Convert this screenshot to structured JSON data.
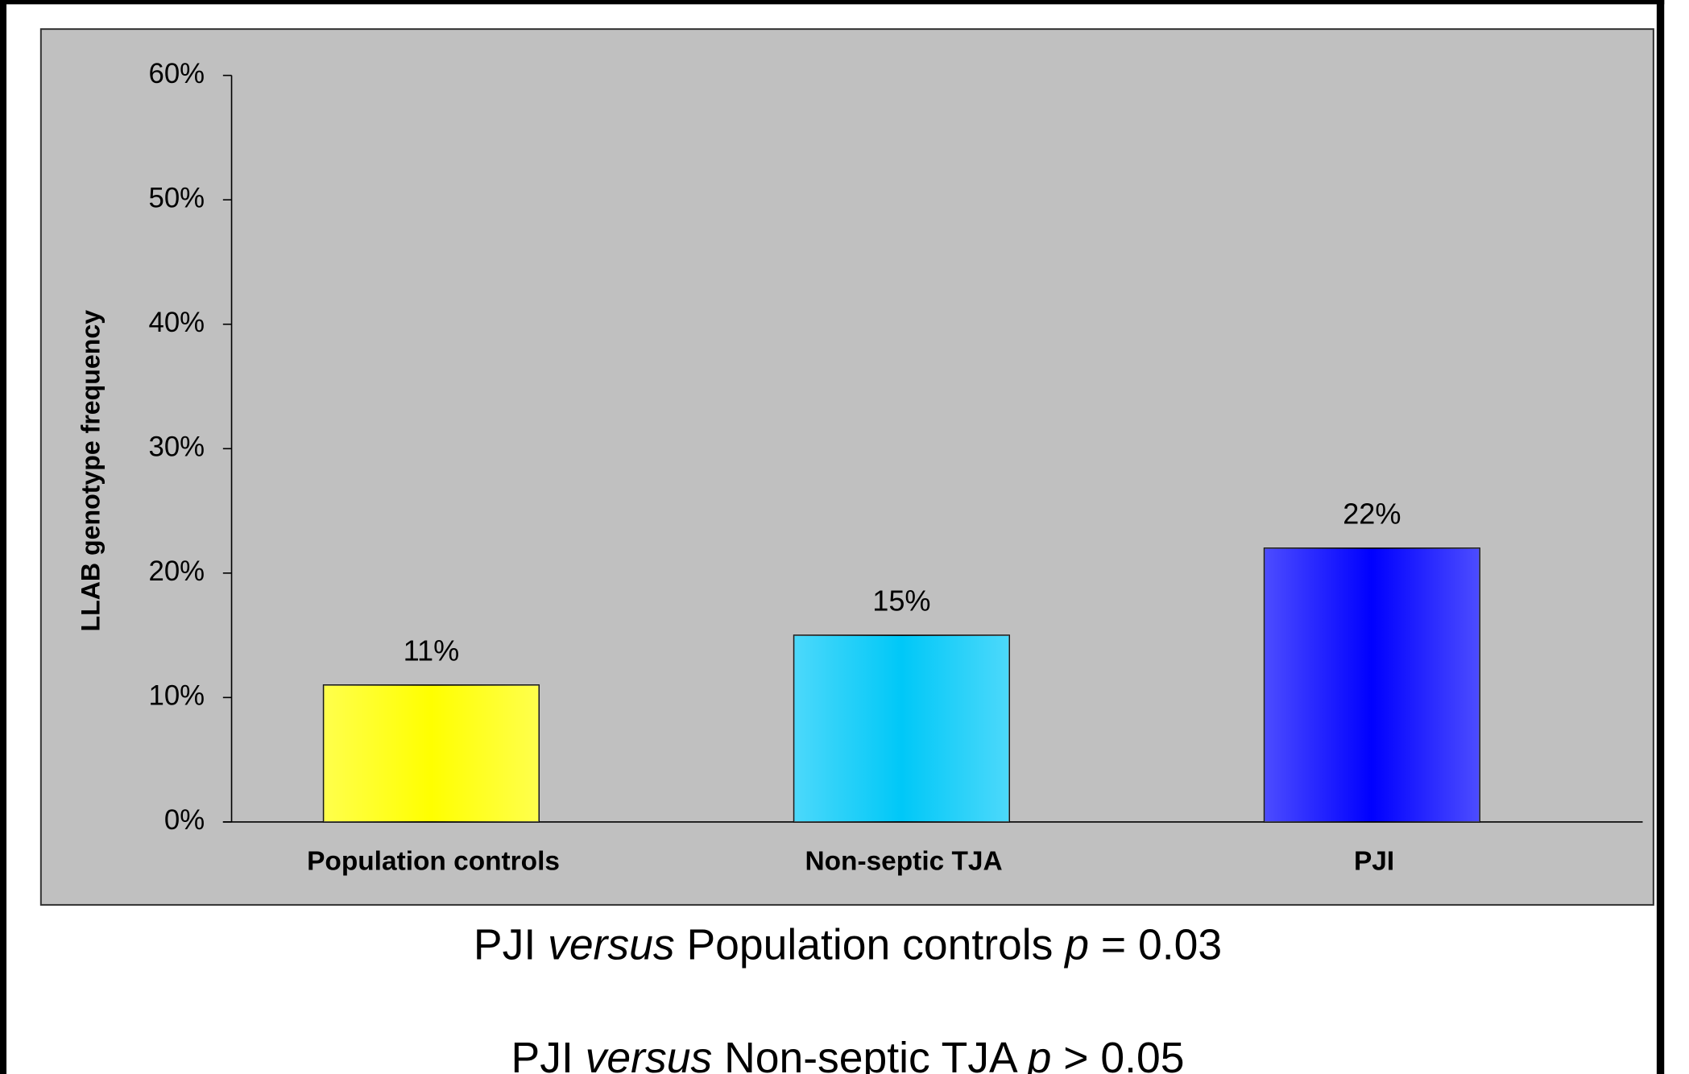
{
  "chart_data": {
    "type": "bar",
    "y_label": "LLAB genotype frequency",
    "categories": [
      "Population controls",
      "Non-septic TJA",
      "PJI"
    ],
    "values": [
      11,
      15,
      22
    ],
    "value_labels": [
      "11%",
      "15%",
      "22%"
    ],
    "colors": [
      "#ffff00",
      "#00c8f8",
      "#0000ff"
    ],
    "ylim": [
      0,
      60
    ],
    "yticks": [
      {
        "value": 0,
        "label": "0%"
      },
      {
        "value": 10,
        "label": "10%"
      },
      {
        "value": 20,
        "label": "20%"
      },
      {
        "value": 30,
        "label": "30%"
      },
      {
        "value": 40,
        "label": "40%"
      },
      {
        "value": 50,
        "label": "50%"
      },
      {
        "value": 60,
        "label": "60%"
      }
    ],
    "background": "#c0c0c0",
    "annotations": [
      [
        {
          "text": "PJI "
        },
        {
          "text": "versus",
          "italic": true
        },
        {
          "text": " Population controls "
        },
        {
          "text": "p",
          "italic": true
        },
        {
          "text": " = 0.03"
        }
      ],
      [
        {
          "text": "PJI "
        },
        {
          "text": "versus",
          "italic": true
        },
        {
          "text": " Non-septic TJA "
        },
        {
          "text": "p",
          "italic": true
        },
        {
          "text": " > 0.05"
        }
      ]
    ]
  }
}
